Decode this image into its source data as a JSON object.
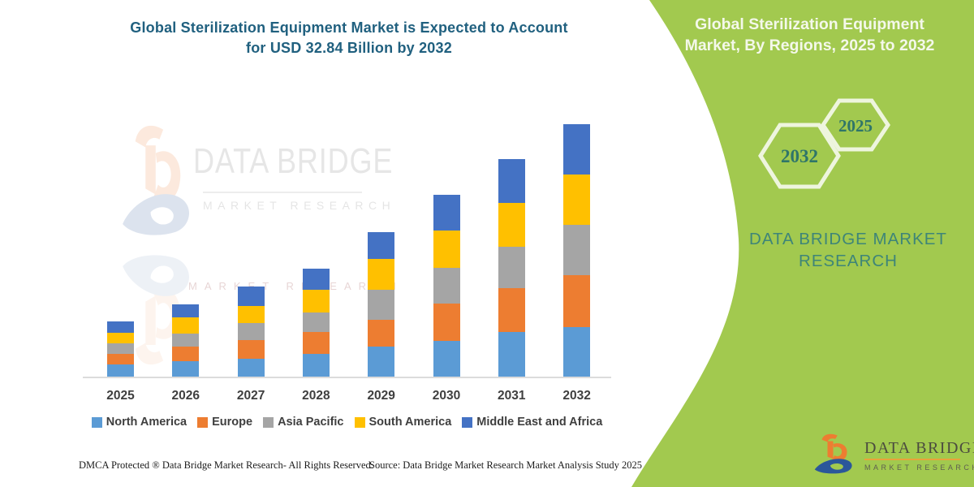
{
  "title": {
    "line1": "Global Sterilization Equipment Market is Expected to Account",
    "line2": "for USD 32.84 Billion by 2032"
  },
  "panel": {
    "heading_line1": "Global Sterilization Equipment",
    "heading_line2": "Market, By Regions, 2025 to 2032",
    "hex_large_label": "2032",
    "hex_small_label": "2025",
    "brand_line1": "DATA BRIDGE MARKET",
    "brand_line2": "RESEARCH",
    "bg_color": "#A2C94F",
    "hex_stroke_color": "#EEF5DE",
    "hex_text_color": "#2F7569",
    "brand_text_color": "#3E8578"
  },
  "watermark": {
    "text": "DATA BRIDGE",
    "subtext": "MARKET RESEARCH",
    "echo": "MARKET RESEARCH"
  },
  "brand_logo": {
    "name": "DATA BRIDGE",
    "subtext": "MARKET RESEARCH",
    "orange": "#ED7D31",
    "blue": "#2B579A"
  },
  "footer": {
    "left": "DMCA Protected ® Data Bridge Market Research-  All Rights Reserved.",
    "source": "Source: Data Bridge Market Research  Market Analysis Study 2025"
  },
  "chart_data": {
    "type": "bar",
    "stacked": true,
    "title": "Global Sterilization Equipment Market is Expected to Account for USD 32.84 Billion by 2032",
    "xlabel": "",
    "ylabel": "",
    "unit": "USD Billion",
    "grid": false,
    "legend_position": "bottom",
    "ylim": [
      0,
      35
    ],
    "categories": [
      "2025",
      "2026",
      "2027",
      "2028",
      "2029",
      "2030",
      "2031",
      "2032"
    ],
    "series": [
      {
        "name": "North America",
        "color": "#5B9BD5",
        "values": [
          1.6,
          2.0,
          2.3,
          3.0,
          3.9,
          4.7,
          5.8,
          6.4
        ]
      },
      {
        "name": "Europe",
        "color": "#ED7D31",
        "values": [
          1.4,
          1.9,
          2.5,
          2.8,
          3.5,
          4.8,
          5.7,
          6.8
        ]
      },
      {
        "name": "Asia Pacific",
        "color": "#A5A5A5",
        "values": [
          1.3,
          1.7,
          2.2,
          2.6,
          3.9,
          4.7,
          5.4,
          6.6
        ]
      },
      {
        "name": "South America",
        "color": "#FFC000",
        "values": [
          1.4,
          2.1,
          2.2,
          2.9,
          4.0,
          4.8,
          5.7,
          6.5
        ]
      },
      {
        "name": "Middle East and Africa",
        "color": "#4472C4",
        "values": [
          1.5,
          1.7,
          2.5,
          2.8,
          3.5,
          4.7,
          5.7,
          6.5
        ]
      }
    ],
    "totals": [
      7.2,
      9.4,
      11.7,
      14.1,
      18.8,
      23.7,
      28.3,
      32.8
    ],
    "axis_line_color": "#DCDCDC",
    "label_color": "#3F3F3F"
  }
}
